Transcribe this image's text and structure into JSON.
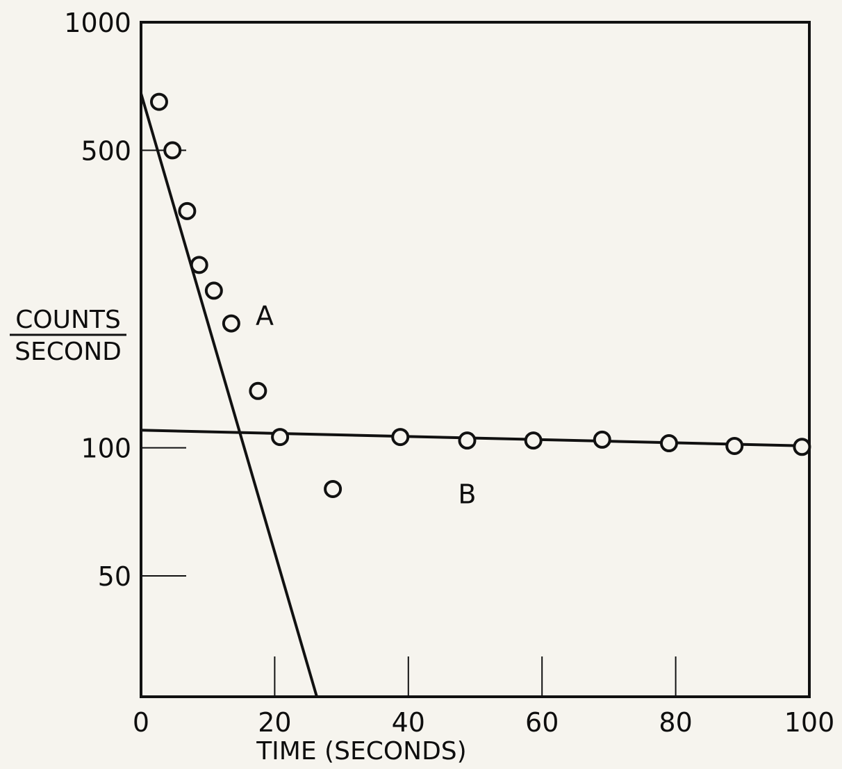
{
  "chart_data": {
    "type": "scatter",
    "xlabel": "TIME (SECONDS)",
    "ylabel": [
      "COUNTS",
      "SECOND"
    ],
    "x_scale": "linear",
    "y_scale": "log",
    "xlim": [
      0,
      100
    ],
    "ylim": [
      26,
      1000
    ],
    "x_ticks": [
      {
        "value": 0,
        "label": "0"
      },
      {
        "value": 20,
        "label": "20"
      },
      {
        "value": 40,
        "label": "40"
      },
      {
        "value": 60,
        "label": "60"
      },
      {
        "value": 80,
        "label": "80"
      },
      {
        "value": 100,
        "label": "100"
      }
    ],
    "y_ticks": [
      {
        "value": 1000,
        "label": "1000"
      },
      {
        "value": 500,
        "label": "500"
      },
      {
        "value": 100,
        "label": "100"
      },
      {
        "value": 50,
        "label": "50"
      }
    ],
    "grid": false,
    "legend": "none",
    "series": [
      {
        "marker": "open-circle",
        "points": [
          {
            "x": 2.7,
            "y": 650
          },
          {
            "x": 4.7,
            "y": 500
          },
          {
            "x": 6.9,
            "y": 360
          },
          {
            "x": 8.7,
            "y": 269
          },
          {
            "x": 10.9,
            "y": 234
          },
          {
            "x": 13.5,
            "y": 196
          },
          {
            "x": 17.5,
            "y": 136
          },
          {
            "x": 20.8,
            "y": 106
          },
          {
            "x": 28.7,
            "y": 80
          },
          {
            "x": 38.8,
            "y": 106
          },
          {
            "x": 48.8,
            "y": 104
          },
          {
            "x": 58.7,
            "y": 104
          },
          {
            "x": 69.0,
            "y": 104.5
          },
          {
            "x": 79.0,
            "y": 102.5
          },
          {
            "x": 88.8,
            "y": 101
          },
          {
            "x": 98.9,
            "y": 100.5
          }
        ]
      }
    ],
    "lines": [
      {
        "label": "A",
        "from": {
          "x": 0,
          "y": 680
        },
        "to": {
          "x": 26.3,
          "y": 26
        },
        "label_at": {
          "x": 18.5,
          "y": 205
        }
      },
      {
        "label": "B",
        "from": {
          "x": 0,
          "y": 110
        },
        "to": {
          "x": 100,
          "y": 101
        },
        "label_at": {
          "x": 48.8,
          "y": 78
        }
      }
    ]
  }
}
